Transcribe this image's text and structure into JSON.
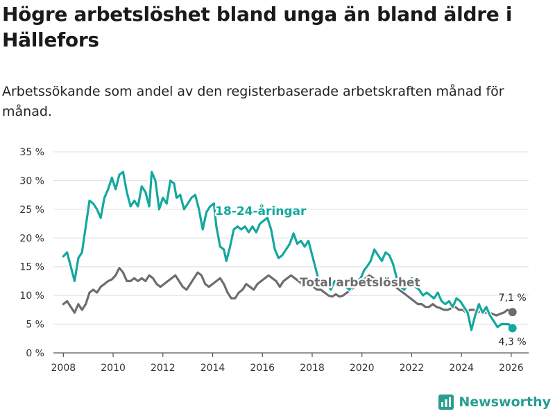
{
  "title": "Högre arbetslöshet bland unga än bland äldre i Hällefors",
  "subtitle": "Arbetssökande som andel av den registerbaserade arbetskraften månad för månad.",
  "brand": {
    "name": "Newsworthy"
  },
  "colors": {
    "youth": "#13a89e",
    "total": "#6d6d6d",
    "grid": "#dddddd",
    "halo": "#ffffff"
  },
  "chart_data": {
    "type": "line",
    "title": "Högre arbetslöshet bland unga än bland äldre i Hällefors",
    "xlabel": "",
    "ylabel": "",
    "xlim": [
      2007.6,
      2026.7
    ],
    "ylim": [
      0,
      35
    ],
    "x_ticks": [
      2008,
      2010,
      2012,
      2014,
      2016,
      2018,
      2020,
      2022,
      2024,
      2026
    ],
    "x_tick_labels": [
      "2008",
      "2010",
      "2012",
      "2014",
      "2016",
      "2018",
      "2020",
      "2022",
      "2024",
      "2026"
    ],
    "y_ticks": [
      0,
      5,
      10,
      15,
      20,
      25,
      30,
      35
    ],
    "y_tick_labels": [
      "0 %",
      "5 %",
      "10 %",
      "15 %",
      "20 %",
      "25 %",
      "30 %",
      "35 %"
    ],
    "grid": true,
    "series": [
      {
        "name": "18-24-åringar",
        "label": "18-24-åringar",
        "label_at": [
          2014.1,
          24.0
        ],
        "end_label": "4,3 %",
        "end_value": 4.3,
        "points": [
          [
            2008.0,
            16.8
          ],
          [
            2008.15,
            17.5
          ],
          [
            2008.3,
            15.0
          ],
          [
            2008.45,
            12.5
          ],
          [
            2008.6,
            16.5
          ],
          [
            2008.75,
            17.5
          ],
          [
            2008.9,
            22.0
          ],
          [
            2009.05,
            26.5
          ],
          [
            2009.2,
            26.0
          ],
          [
            2009.35,
            25.0
          ],
          [
            2009.5,
            23.5
          ],
          [
            2009.65,
            27.0
          ],
          [
            2009.8,
            28.5
          ],
          [
            2009.95,
            30.5
          ],
          [
            2010.1,
            28.5
          ],
          [
            2010.25,
            31.0
          ],
          [
            2010.4,
            31.5
          ],
          [
            2010.55,
            28.0
          ],
          [
            2010.7,
            25.5
          ],
          [
            2010.85,
            26.5
          ],
          [
            2011.0,
            25.5
          ],
          [
            2011.15,
            29.0
          ],
          [
            2011.3,
            28.0
          ],
          [
            2011.45,
            25.5
          ],
          [
            2011.55,
            31.5
          ],
          [
            2011.7,
            30.0
          ],
          [
            2011.85,
            25.0
          ],
          [
            2012.0,
            27.0
          ],
          [
            2012.15,
            26.0
          ],
          [
            2012.3,
            30.0
          ],
          [
            2012.45,
            29.5
          ],
          [
            2012.55,
            27.0
          ],
          [
            2012.7,
            27.5
          ],
          [
            2012.85,
            25.0
          ],
          [
            2013.0,
            26.0
          ],
          [
            2013.15,
            27.0
          ],
          [
            2013.3,
            27.5
          ],
          [
            2013.45,
            25.0
          ],
          [
            2013.6,
            21.5
          ],
          [
            2013.75,
            24.5
          ],
          [
            2013.9,
            25.5
          ],
          [
            2014.05,
            26.0
          ],
          [
            2014.15,
            22.0
          ],
          [
            2014.3,
            18.5
          ],
          [
            2014.45,
            18.0
          ],
          [
            2014.55,
            16.0
          ],
          [
            2014.7,
            18.5
          ],
          [
            2014.85,
            21.5
          ],
          [
            2015.0,
            22.0
          ],
          [
            2015.15,
            21.5
          ],
          [
            2015.3,
            22.0
          ],
          [
            2015.45,
            21.0
          ],
          [
            2015.6,
            22.0
          ],
          [
            2015.75,
            21.0
          ],
          [
            2015.9,
            22.5
          ],
          [
            2016.05,
            23.0
          ],
          [
            2016.2,
            23.5
          ],
          [
            2016.35,
            21.5
          ],
          [
            2016.5,
            18.0
          ],
          [
            2016.65,
            16.5
          ],
          [
            2016.8,
            17.0
          ],
          [
            2016.95,
            18.0
          ],
          [
            2017.1,
            19.0
          ],
          [
            2017.25,
            20.8
          ],
          [
            2017.4,
            19.0
          ],
          [
            2017.55,
            19.5
          ],
          [
            2017.7,
            18.5
          ],
          [
            2017.85,
            19.5
          ],
          [
            2018.0,
            17.0
          ],
          [
            2018.15,
            14.5
          ],
          [
            2018.3,
            12.0
          ],
          [
            2018.45,
            11.5
          ],
          [
            2018.6,
            12.0
          ],
          [
            2018.75,
            11.0
          ],
          [
            2018.9,
            12.5
          ],
          [
            2019.05,
            11.5
          ],
          [
            2019.2,
            12.0
          ],
          [
            2019.35,
            11.5
          ],
          [
            2019.5,
            11.0
          ],
          [
            2019.65,
            12.0
          ],
          [
            2019.8,
            12.5
          ],
          [
            2019.95,
            13.0
          ],
          [
            2020.1,
            14.5
          ],
          [
            2020.2,
            15.0
          ],
          [
            2020.35,
            16.0
          ],
          [
            2020.5,
            18.0
          ],
          [
            2020.65,
            17.0
          ],
          [
            2020.8,
            16.0
          ],
          [
            2020.95,
            17.5
          ],
          [
            2021.1,
            17.0
          ],
          [
            2021.25,
            15.5
          ],
          [
            2021.4,
            13.0
          ],
          [
            2021.55,
            11.5
          ],
          [
            2021.7,
            11.0
          ],
          [
            2021.85,
            12.0
          ],
          [
            2022.0,
            13.0
          ],
          [
            2022.15,
            11.5
          ],
          [
            2022.3,
            11.0
          ],
          [
            2022.45,
            10.0
          ],
          [
            2022.6,
            10.5
          ],
          [
            2022.75,
            10.0
          ],
          [
            2022.9,
            9.5
          ],
          [
            2023.05,
            10.5
          ],
          [
            2023.2,
            9.0
          ],
          [
            2023.35,
            8.5
          ],
          [
            2023.5,
            9.0
          ],
          [
            2023.65,
            8.0
          ],
          [
            2023.8,
            9.5
          ],
          [
            2023.95,
            9.0
          ],
          [
            2024.1,
            8.0
          ],
          [
            2024.25,
            7.0
          ],
          [
            2024.4,
            4.0
          ],
          [
            2024.55,
            6.5
          ],
          [
            2024.7,
            8.5
          ],
          [
            2024.85,
            7.0
          ],
          [
            2025.0,
            8.0
          ],
          [
            2025.15,
            6.5
          ],
          [
            2025.3,
            5.5
          ],
          [
            2025.45,
            4.5
          ],
          [
            2025.6,
            5.0
          ],
          [
            2025.75,
            5.0
          ],
          [
            2025.9,
            5.0
          ],
          [
            2026.05,
            4.3
          ]
        ]
      },
      {
        "name": "Total arbetslöshet",
        "label": "Total arbetslöshet",
        "label_at": [
          2017.5,
          11.6
        ],
        "end_label": "7,1 %",
        "end_value": 7.1,
        "points": [
          [
            2008.0,
            8.5
          ],
          [
            2008.15,
            9.0
          ],
          [
            2008.3,
            8.0
          ],
          [
            2008.45,
            7.0
          ],
          [
            2008.6,
            8.5
          ],
          [
            2008.75,
            7.5
          ],
          [
            2008.9,
            8.5
          ],
          [
            2009.05,
            10.5
          ],
          [
            2009.2,
            11.0
          ],
          [
            2009.35,
            10.5
          ],
          [
            2009.5,
            11.5
          ],
          [
            2009.65,
            12.0
          ],
          [
            2009.8,
            12.5
          ],
          [
            2009.95,
            12.8
          ],
          [
            2010.1,
            13.5
          ],
          [
            2010.25,
            14.8
          ],
          [
            2010.4,
            14.0
          ],
          [
            2010.55,
            12.5
          ],
          [
            2010.7,
            12.5
          ],
          [
            2010.85,
            13.0
          ],
          [
            2011.0,
            12.5
          ],
          [
            2011.15,
            13.0
          ],
          [
            2011.3,
            12.5
          ],
          [
            2011.45,
            13.5
          ],
          [
            2011.6,
            13.0
          ],
          [
            2011.75,
            12.0
          ],
          [
            2011.9,
            11.5
          ],
          [
            2012.05,
            12.0
          ],
          [
            2012.2,
            12.5
          ],
          [
            2012.35,
            13.0
          ],
          [
            2012.5,
            13.5
          ],
          [
            2012.65,
            12.5
          ],
          [
            2012.8,
            11.5
          ],
          [
            2012.95,
            11.0
          ],
          [
            2013.1,
            12.0
          ],
          [
            2013.25,
            13.0
          ],
          [
            2013.4,
            14.0
          ],
          [
            2013.55,
            13.5
          ],
          [
            2013.7,
            12.0
          ],
          [
            2013.85,
            11.5
          ],
          [
            2014.0,
            12.0
          ],
          [
            2014.15,
            12.5
          ],
          [
            2014.3,
            13.0
          ],
          [
            2014.45,
            12.0
          ],
          [
            2014.6,
            10.5
          ],
          [
            2014.75,
            9.5
          ],
          [
            2014.9,
            9.5
          ],
          [
            2015.05,
            10.5
          ],
          [
            2015.2,
            11.0
          ],
          [
            2015.35,
            12.0
          ],
          [
            2015.5,
            11.5
          ],
          [
            2015.65,
            11.0
          ],
          [
            2015.8,
            12.0
          ],
          [
            2015.95,
            12.5
          ],
          [
            2016.1,
            13.0
          ],
          [
            2016.25,
            13.5
          ],
          [
            2016.4,
            13.0
          ],
          [
            2016.55,
            12.5
          ],
          [
            2016.7,
            11.5
          ],
          [
            2016.85,
            12.5
          ],
          [
            2017.0,
            13.0
          ],
          [
            2017.15,
            13.5
          ],
          [
            2017.3,
            13.0
          ],
          [
            2017.45,
            12.5
          ],
          [
            2017.6,
            12.0
          ],
          [
            2017.75,
            12.5
          ],
          [
            2017.9,
            12.0
          ],
          [
            2018.05,
            11.5
          ],
          [
            2018.2,
            11.0
          ],
          [
            2018.35,
            11.0
          ],
          [
            2018.5,
            10.5
          ],
          [
            2018.65,
            10.0
          ],
          [
            2018.8,
            9.8
          ],
          [
            2018.95,
            10.2
          ],
          [
            2019.1,
            9.8
          ],
          [
            2019.25,
            10.0
          ],
          [
            2019.4,
            10.5
          ],
          [
            2019.55,
            11.0
          ],
          [
            2019.7,
            11.5
          ],
          [
            2019.85,
            12.0
          ],
          [
            2020.0,
            12.5
          ],
          [
            2020.15,
            13.0
          ],
          [
            2020.3,
            13.5
          ],
          [
            2020.45,
            13.0
          ],
          [
            2020.6,
            12.5
          ],
          [
            2020.75,
            12.5
          ],
          [
            2020.9,
            12.0
          ],
          [
            2021.05,
            12.5
          ],
          [
            2021.2,
            12.0
          ],
          [
            2021.35,
            11.5
          ],
          [
            2021.5,
            11.0
          ],
          [
            2021.65,
            10.5
          ],
          [
            2021.8,
            10.0
          ],
          [
            2021.95,
            9.5
          ],
          [
            2022.1,
            9.0
          ],
          [
            2022.25,
            8.5
          ],
          [
            2022.4,
            8.5
          ],
          [
            2022.55,
            8.0
          ],
          [
            2022.7,
            8.0
          ],
          [
            2022.85,
            8.5
          ],
          [
            2023.0,
            8.0
          ],
          [
            2023.15,
            7.8
          ],
          [
            2023.3,
            7.5
          ],
          [
            2023.45,
            7.5
          ],
          [
            2023.6,
            7.8
          ],
          [
            2023.75,
            8.0
          ],
          [
            2023.9,
            7.5
          ],
          [
            2024.05,
            7.5
          ],
          [
            2024.2,
            7.0
          ],
          [
            2024.35,
            7.5
          ],
          [
            2024.5,
            7.5
          ],
          [
            2024.65,
            7.0
          ],
          [
            2024.8,
            7.5
          ],
          [
            2024.95,
            7.0
          ],
          [
            2025.1,
            7.0
          ],
          [
            2025.25,
            6.8
          ],
          [
            2025.4,
            6.5
          ],
          [
            2025.55,
            6.8
          ],
          [
            2025.7,
            7.0
          ],
          [
            2025.85,
            7.5
          ],
          [
            2026.05,
            7.1
          ]
        ]
      }
    ]
  }
}
